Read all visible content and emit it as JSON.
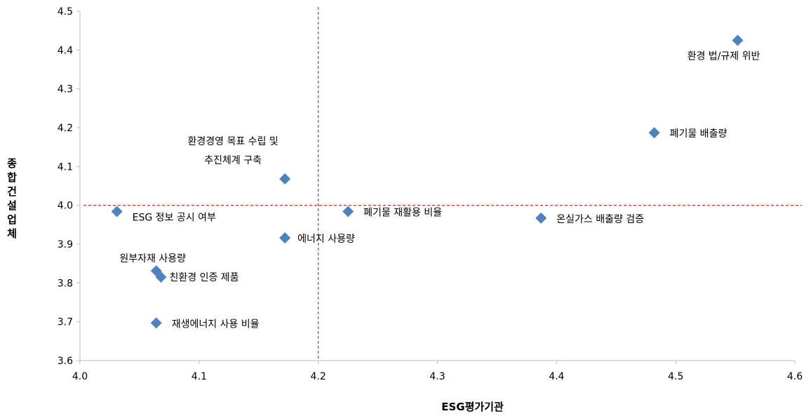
{
  "chart_data": {
    "type": "scatter",
    "title": "",
    "xlabel": "ESG평가기관",
    "ylabel": "종합건설업체",
    "xlim": [
      4.0,
      4.6
    ],
    "ylim": [
      3.6,
      4.5
    ],
    "x_ticks": [
      "4.0",
      "4.1",
      "4.2",
      "4.3",
      "4.4",
      "4.5",
      "4.6"
    ],
    "y_ticks": [
      "3.6",
      "3.7",
      "3.8",
      "3.9",
      "4.0",
      "4.1",
      "4.2",
      "4.3",
      "4.4",
      "4.5"
    ],
    "reference_lines": {
      "x": 4.2,
      "y": 4.0,
      "style": "dashed",
      "color": "#e8312f"
    },
    "marker": {
      "shape": "diamond",
      "color": "#4f81bd"
    },
    "grid": false,
    "points": [
      {
        "label": "환경 법/규제 위반",
        "x": 4.552,
        "y": 4.425
      },
      {
        "label": "폐기물 배출량",
        "x": 4.482,
        "y": 4.187
      },
      {
        "label": "환경경영 목표 수립 및 추진체계 구축",
        "x": 4.172,
        "y": 4.068
      },
      {
        "label": "ESG 정보 공시 여부",
        "x": 4.031,
        "y": 3.984
      },
      {
        "label": "폐기물 재활용 비율",
        "x": 4.225,
        "y": 3.984
      },
      {
        "label": "온실가스 배출량 검증",
        "x": 4.387,
        "y": 3.967
      },
      {
        "label": "에너지 사용량",
        "x": 4.172,
        "y": 3.916
      },
      {
        "label": "원부자재 사용량",
        "x": 4.064,
        "y": 3.831
      },
      {
        "label": "친환경 인증 제품",
        "x": 4.068,
        "y": 3.815
      },
      {
        "label": "재생에너지 사용 비율",
        "x": 4.064,
        "y": 3.697
      }
    ]
  }
}
